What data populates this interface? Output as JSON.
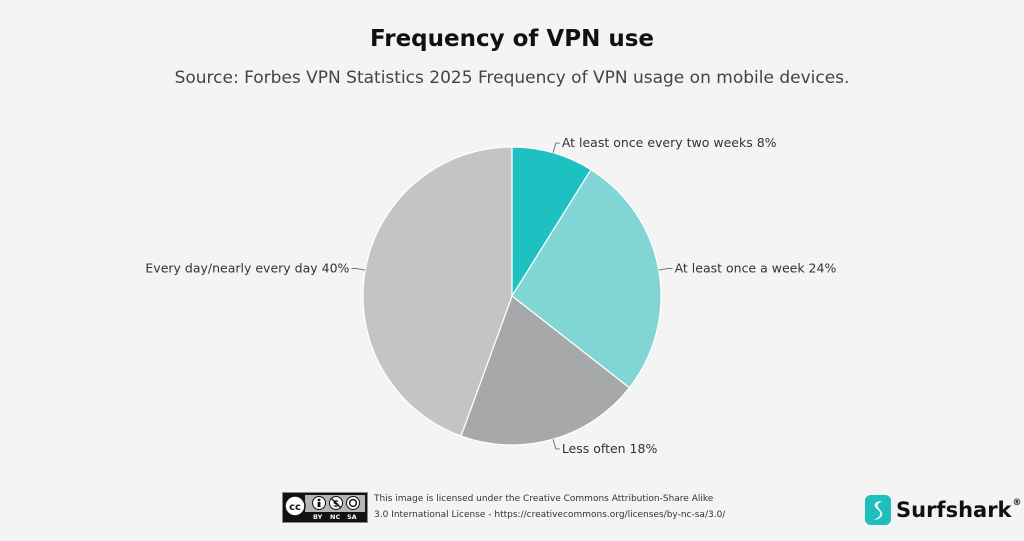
{
  "title": "Frequency of VPN use",
  "subtitle": "Source: Forbes VPN Statistics 2025 Frequency of VPN usage on mobile devices.",
  "chart_data": {
    "type": "pie",
    "slices": [
      {
        "label": "At least once every two weeks",
        "value": 8,
        "display": "8%",
        "color": "#1dc1c1"
      },
      {
        "label": "At least once a week",
        "value": 24,
        "display": "24%",
        "color": "#82d5d5"
      },
      {
        "label": "Less often",
        "value": 18,
        "display": "18%",
        "color": "#a7a8aa"
      },
      {
        "label": "Every day/nearly every day",
        "value": 40,
        "display": "40%",
        "color": "#c4c4c4"
      }
    ]
  },
  "license": {
    "badge": {
      "icon": "cc-by-nc-sa-icon",
      "text_by": "BY",
      "text_nc": "NC",
      "text_sa": "SA"
    },
    "line1": "This image is licensed under the Creative Commons Attribution-Share Alike",
    "line2": "3.0 International License - https://creativecommons.org/licenses/by-nc-sa/3.0/"
  },
  "brand": {
    "name": "Surfshark",
    "reg": "®",
    "icon": "surfshark-logo-icon",
    "color": "#1ebfbf"
  }
}
